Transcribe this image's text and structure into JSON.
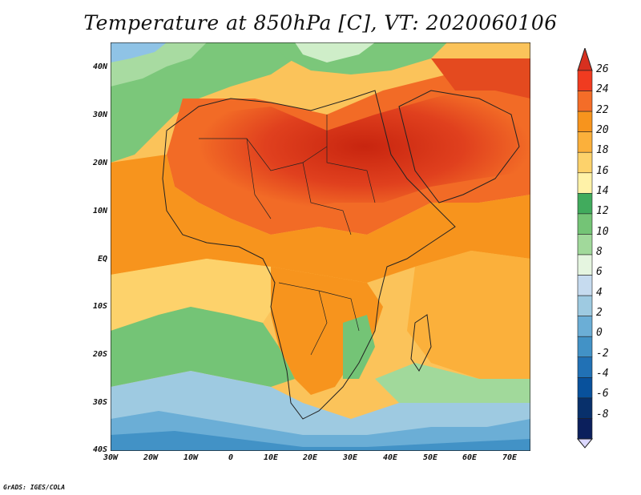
{
  "title": "Temperature at 850hPa [C], VT: 2020060106",
  "credit": "GrADS: IGES/COLA",
  "map": {
    "lat_labels": [
      "40N",
      "30N",
      "20N",
      "10N",
      "EQ",
      "10S",
      "20S",
      "30S",
      "40S"
    ],
    "lon_labels": [
      "30W",
      "20W",
      "10W",
      "0",
      "10E",
      "20E",
      "30E",
      "40E",
      "50E",
      "60E",
      "70E"
    ]
  },
  "colorbar": {
    "labels": [
      "26",
      "24",
      "22",
      "20",
      "18",
      "16",
      "14",
      "12",
      "10",
      "8",
      "6",
      "4",
      "2",
      "0",
      "-2",
      "-4",
      "-6",
      "-8"
    ],
    "colors": [
      "#d7301f",
      "#f03b20",
      "#f46d28",
      "#f7941d",
      "#fbb03b",
      "#fdd26b",
      "#fff2a8",
      "#41ab5d",
      "#74c476",
      "#a1d99b",
      "#e5f5e0",
      "#c6dbef",
      "#9ecae1",
      "#6baed6",
      "#4292c6",
      "#2171b5",
      "#08519c",
      "#08306b",
      "#0b1f5c",
      "#dcd8ff"
    ]
  },
  "legend_colors": {
    "hot": "#d7301f",
    "warm": "#f7941d",
    "mild": "#fdd26b",
    "cool": "#74c476",
    "cold": "#4292c6"
  }
}
